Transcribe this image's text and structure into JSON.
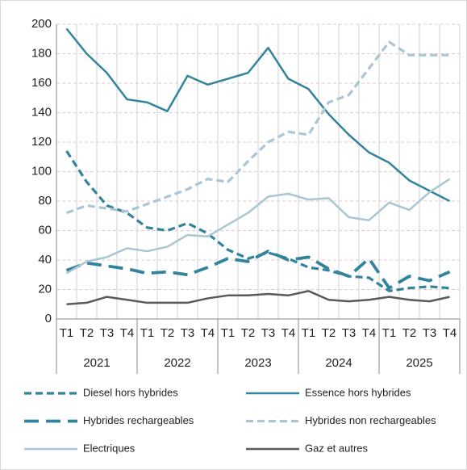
{
  "chart_data": {
    "type": "line",
    "categories": [
      "T1",
      "T2",
      "T3",
      "T4",
      "T1",
      "T2",
      "T3",
      "T4",
      "T1",
      "T2",
      "T3",
      "T4",
      "T1",
      "T2",
      "T3",
      "T4",
      "T1",
      "T2",
      "T3",
      "T4"
    ],
    "year_groups": [
      "2021",
      "2022",
      "2023",
      "2024",
      "2025"
    ],
    "ylim": [
      0,
      200
    ],
    "yticks": [
      0,
      20,
      40,
      60,
      80,
      100,
      120,
      140,
      160,
      180,
      200
    ],
    "grid": true,
    "legend": "bottom",
    "series": [
      {
        "name": "Diesel hors hybrides",
        "color": "#31849b",
        "style": "dashed",
        "values": [
          114,
          93,
          77,
          72,
          62,
          60,
          65,
          58,
          47,
          41,
          45,
          41,
          35,
          33,
          29,
          28,
          19,
          21,
          22,
          21
        ]
      },
      {
        "name": "Essence hors hybrides",
        "color": "#31849b",
        "style": "solid",
        "values": [
          197,
          180,
          167,
          149,
          147,
          141,
          165,
          159,
          163,
          167,
          184,
          163,
          156,
          139,
          125,
          113,
          106,
          94,
          87,
          80
        ]
      },
      {
        "name": "Hybrides rechargeables",
        "color": "#31849b",
        "style": "long-dashed",
        "values": [
          33,
          38,
          36,
          34,
          31,
          32,
          30,
          35,
          41,
          39,
          46,
          40,
          42,
          34,
          29,
          41,
          21,
          29,
          26,
          32
        ]
      },
      {
        "name": "Hybrides non rechargeables",
        "color": "#a9c6d2",
        "style": "dashed",
        "values": [
          72,
          77,
          75,
          73,
          78,
          83,
          88,
          95,
          93,
          107,
          120,
          127,
          125,
          147,
          152,
          170,
          188,
          179,
          179,
          179
        ]
      },
      {
        "name": "Electriques",
        "color": "#a9c6d2",
        "style": "solid",
        "values": [
          31,
          39,
          42,
          48,
          46,
          49,
          57,
          56,
          64,
          72,
          83,
          85,
          81,
          82,
          69,
          67,
          79,
          74,
          86,
          95
        ]
      },
      {
        "name": "Gaz et autres",
        "color": "#5a5a5a",
        "style": "solid",
        "values": [
          10,
          11,
          15,
          13,
          11,
          11,
          11,
          14,
          16,
          16,
          17,
          16,
          19,
          13,
          12,
          13,
          15,
          13,
          12,
          15
        ]
      }
    ]
  }
}
